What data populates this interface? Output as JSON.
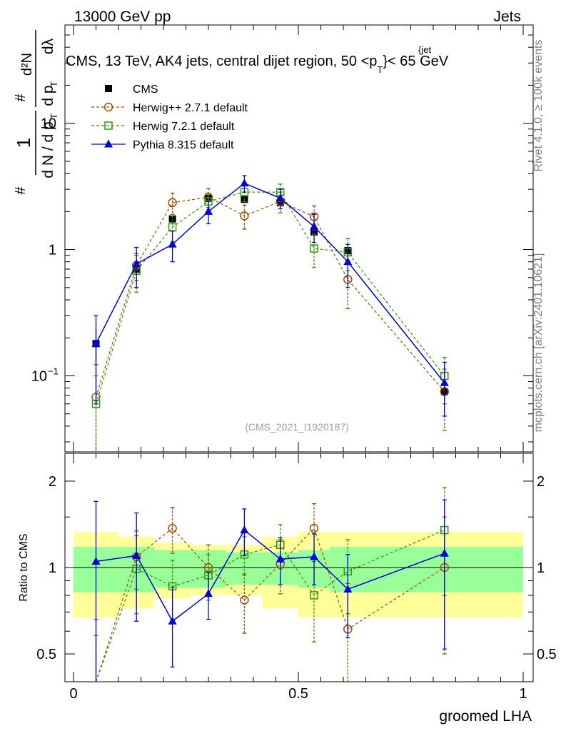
{
  "header": {
    "left": "13000 GeV pp",
    "right": "Jets"
  },
  "side_labels": {
    "rivet": "Rivet 4.1.0, ≥ 100k events",
    "mcplots": "mcplots.cern.ch [arXiv:2401.10621]"
  },
  "watermark": "(CMS_2021_I1920187)",
  "colors": {
    "cms": "#000000",
    "herwigpp": "#a05000",
    "herwig7": "#339900",
    "pythia": "#0000dd",
    "band_inner": "#99ff99",
    "band_outer": "#ffff99"
  },
  "chart_data": {
    "type": "scatter",
    "title": "CMS, 13 TeV, AK4 jets, central dijet region, 50 <p_T^{jet}< 65 GeV",
    "title_parts": {
      "before": "CMS, 13 TeV, AK4 jets, central dijet region, 50 <p",
      "sub": "T",
      "sup": "{jet",
      "after": "}< 65 GeV"
    },
    "xlabel": "groomed LHA",
    "ylabel": "1/dN/dp_T  d^2N/dp_T dλ",
    "ylabel_parts": {
      "top": "#",
      "one": "1",
      "denom": "d N / d p",
      "sub": "T",
      "d2N": "d²N",
      "dpT": "d p",
      "dlam": "dλ"
    },
    "ratio_ylabel": "Ratio to CMS",
    "xlim": [
      0,
      1
    ],
    "ylim": [
      0.025,
      60
    ],
    "yscale": "log",
    "ratio_ylim": [
      0.4,
      2.5
    ],
    "x_ticks": [
      {
        "value": 0,
        "label": "0"
      },
      {
        "value": 0.5,
        "label": "0.5"
      },
      {
        "value": 1,
        "label": "1"
      }
    ],
    "y_ticks": [
      {
        "value": 0.1,
        "label": "10",
        "exp": "−1"
      },
      {
        "value": 1,
        "label": "1",
        "exp": ""
      },
      {
        "value": 10,
        "label": "10",
        "exp": ""
      }
    ],
    "ratio_ticks": [
      {
        "value": 0.5,
        "label": "0.5"
      },
      {
        "value": 1,
        "label": "1"
      },
      {
        "value": 2,
        "label": "2"
      }
    ],
    "bin_edges": [
      0,
      0.1,
      0.18,
      0.26,
      0.34,
      0.42,
      0.5,
      0.57,
      0.65,
      1.0
    ],
    "x": [
      0.05,
      0.14,
      0.22,
      0.3,
      0.38,
      0.46,
      0.535,
      0.61,
      0.825
    ],
    "band_inner": [
      0.18,
      0.18,
      0.15,
      0.15,
      0.13,
      0.13,
      0.15,
      0.18,
      0.18
    ],
    "band_outer": [
      0.33,
      0.28,
      0.22,
      0.2,
      0.2,
      0.28,
      0.33,
      0.33,
      0.33
    ],
    "series": [
      {
        "name": "CMS",
        "key": "cms",
        "marker": "filled-square",
        "values": [
          0.18,
          0.7,
          1.75,
          2.55,
          2.5,
          2.35,
          1.38,
          0.98,
          0.075
        ],
        "errors": [
          0.05,
          0.06,
          0.12,
          0.12,
          0.12,
          0.12,
          0.08,
          0.07,
          0.012
        ],
        "ratio": [
          1,
          1,
          1,
          1,
          1,
          1,
          1,
          1,
          1
        ],
        "ratio_err": [
          0,
          0,
          0,
          0,
          0,
          0,
          0,
          0,
          0
        ]
      },
      {
        "name": "Herwig++ 2.7.1 default",
        "key": "herwigpp",
        "marker": "open-circle",
        "values": [
          0.068,
          0.75,
          2.35,
          2.6,
          1.85,
          2.4,
          1.82,
          0.58,
          0.075
        ],
        "errors": [
          0.055,
          0.18,
          0.45,
          0.45,
          0.4,
          0.45,
          0.4,
          0.24,
          0.038
        ],
        "ratio": [
          0.36,
          1.09,
          1.37,
          1.0,
          0.77,
          1.03,
          1.37,
          0.61,
          1.0
        ],
        "ratio_err": [
          0.3,
          0.25,
          0.25,
          0.2,
          0.18,
          0.22,
          0.3,
          0.27,
          0.5
        ]
      },
      {
        "name": "Herwig 7.2.1 default",
        "key": "herwig7",
        "marker": "open-square",
        "values": [
          0.06,
          0.68,
          1.5,
          2.4,
          2.85,
          2.85,
          1.02,
          0.95,
          0.1
        ],
        "errors": [
          0.04,
          0.22,
          0.35,
          0.4,
          0.45,
          0.45,
          0.3,
          0.27,
          0.04
        ],
        "ratio": [
          0.33,
          0.99,
          0.86,
          0.94,
          1.11,
          1.2,
          0.8,
          0.97,
          1.35
        ],
        "ratio_err": [
          0.25,
          0.3,
          0.2,
          0.17,
          0.17,
          0.21,
          0.25,
          0.28,
          0.55
        ]
      },
      {
        "name": "Pythia 8.315 default",
        "key": "pythia",
        "marker": "filled-triangle",
        "values": [
          0.18,
          0.77,
          1.1,
          2.0,
          3.35,
          2.55,
          1.52,
          0.8,
          0.088
        ],
        "errors": [
          0.12,
          0.27,
          0.3,
          0.4,
          0.5,
          0.45,
          0.38,
          0.3,
          0.04
        ],
        "ratio": [
          1.05,
          1.1,
          0.65,
          0.81,
          1.35,
          1.07,
          1.09,
          0.84,
          1.12
        ],
        "ratio_err": [
          0.65,
          0.45,
          0.2,
          0.15,
          0.25,
          0.2,
          0.22,
          0.27,
          0.6
        ]
      }
    ]
  }
}
